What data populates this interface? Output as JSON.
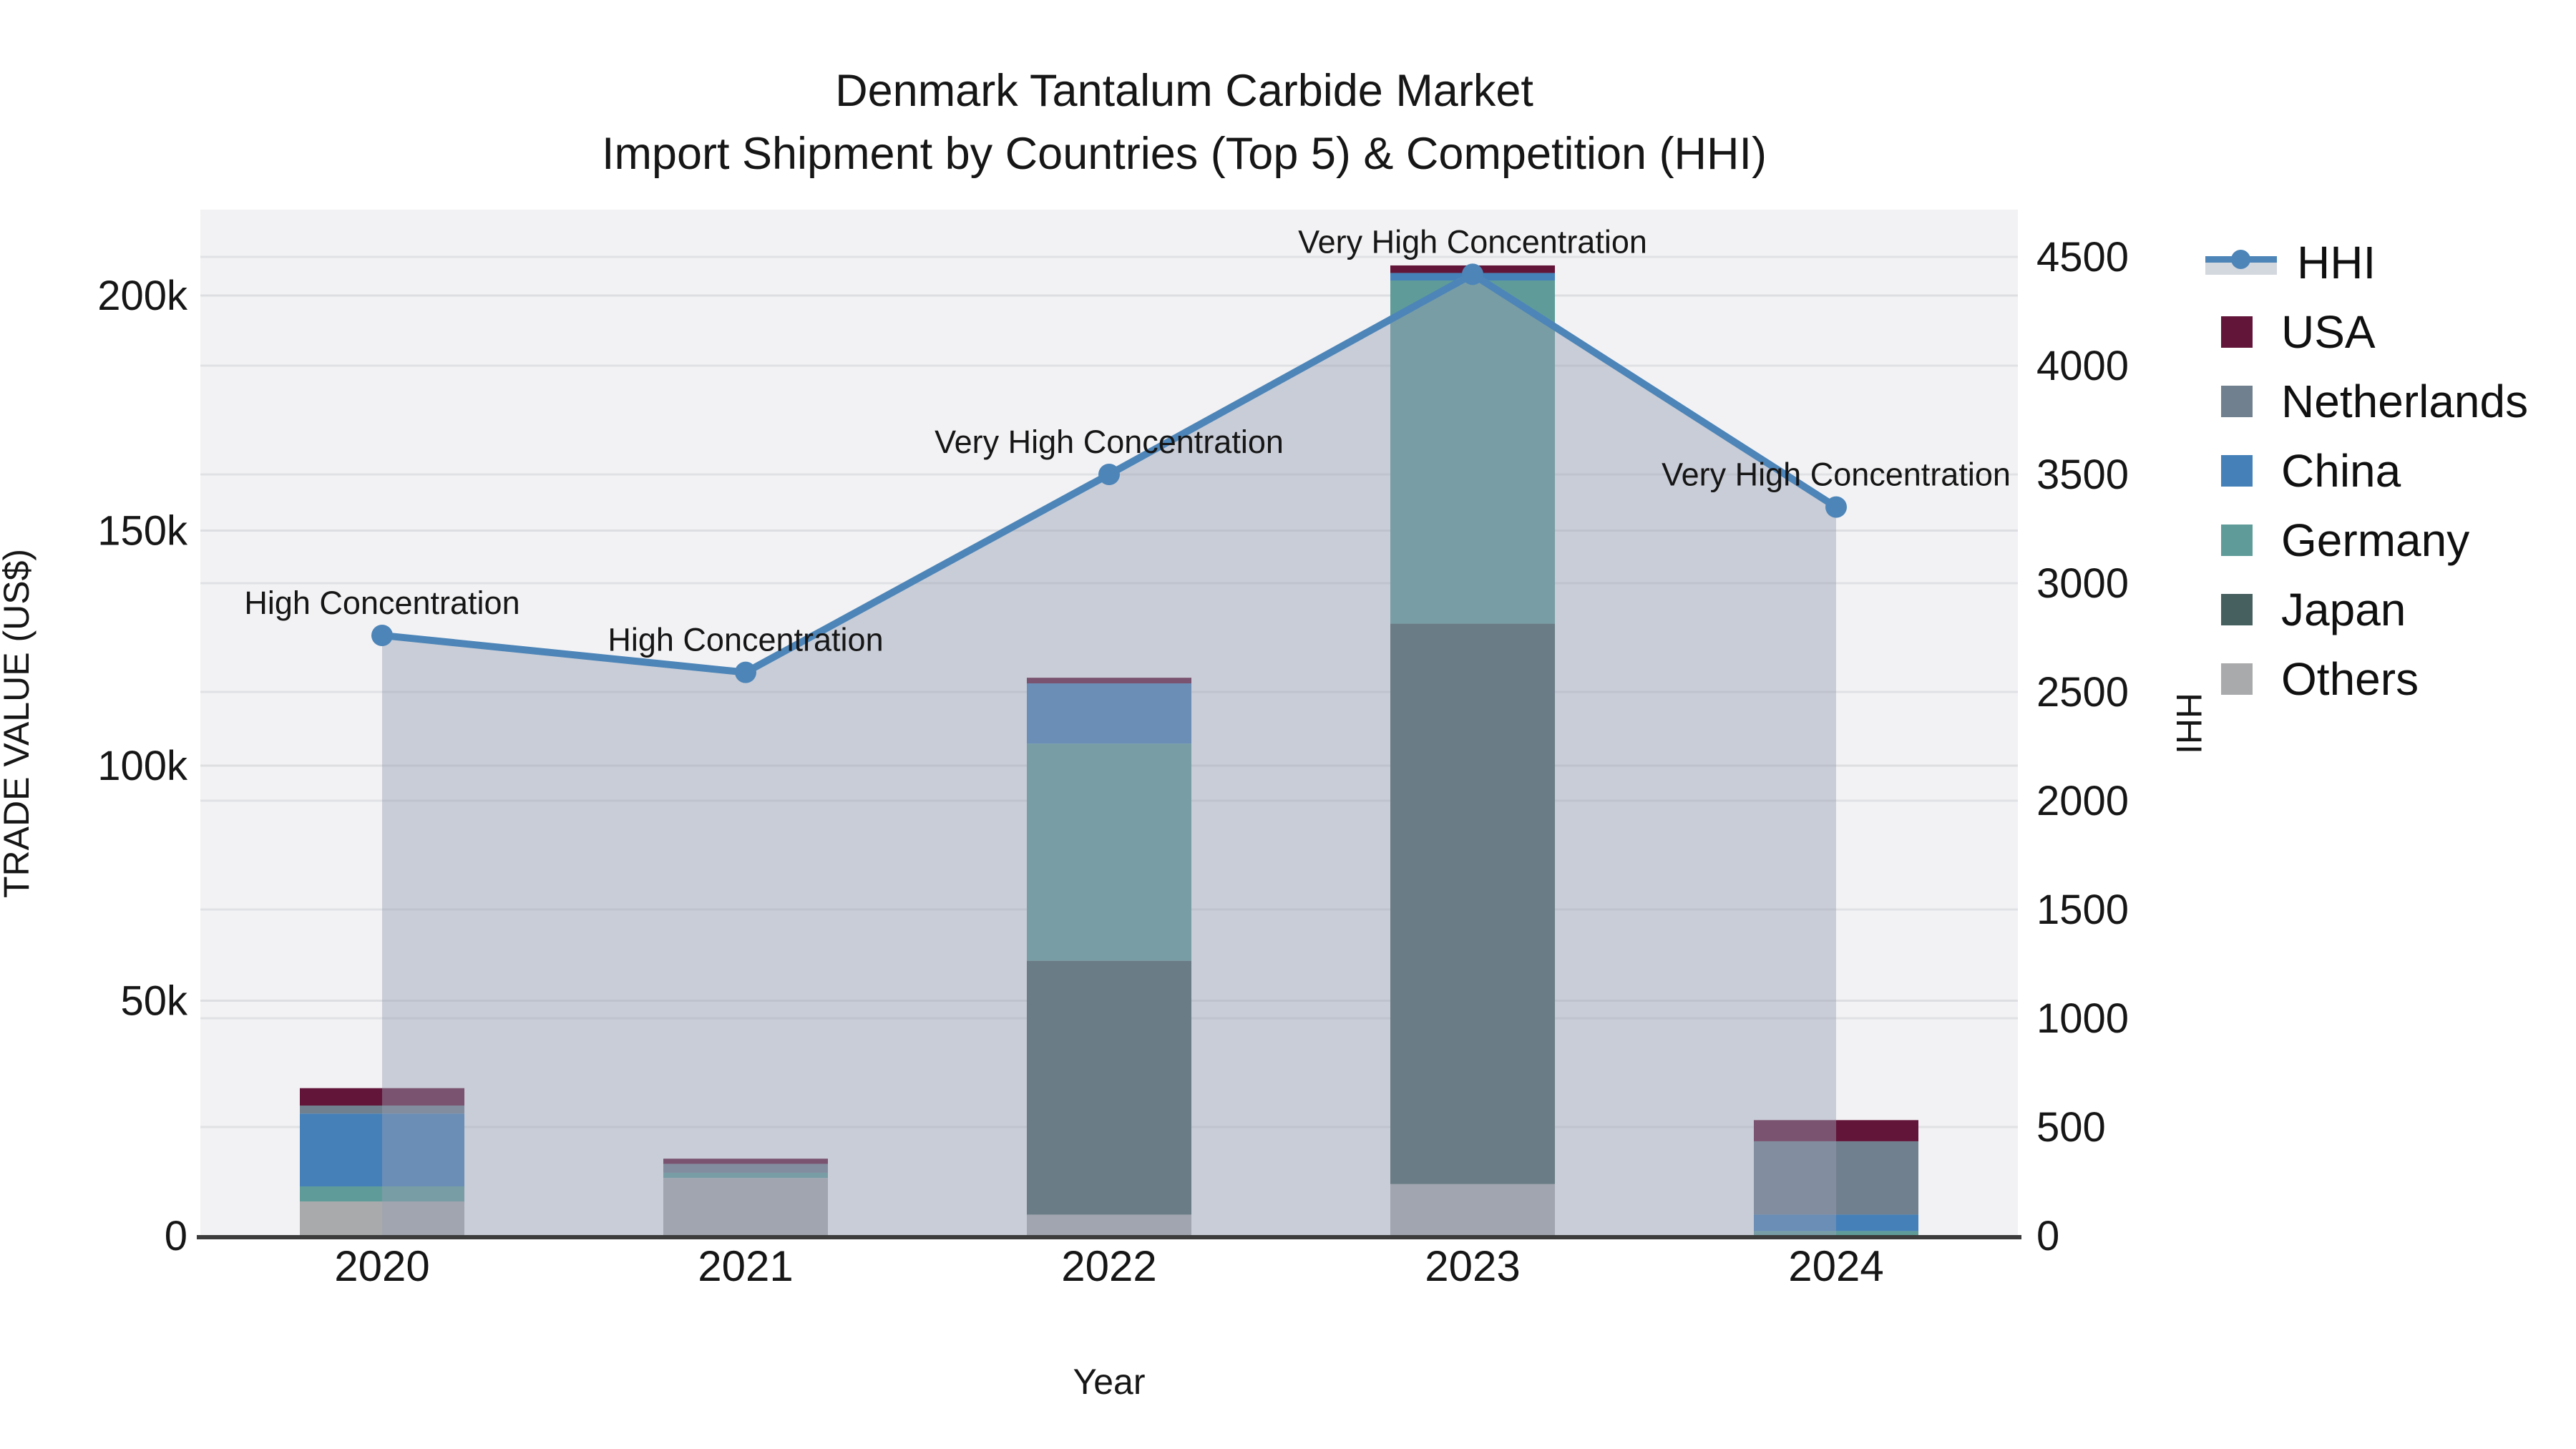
{
  "title": {
    "line1": "Denmark Tantalum Carbide Market",
    "line2": "Import Shipment by Countries (Top 5) & Competition (HHI)"
  },
  "axes": {
    "x": {
      "title": "Year",
      "categories": [
        "2020",
        "2021",
        "2022",
        "2023",
        "2024"
      ]
    },
    "y_left": {
      "title": "TRADE VALUE (US$)",
      "tick_labels": [
        "0",
        "50k",
        "100k",
        "150k",
        "200k"
      ],
      "tick_values_kusd": [
        0,
        50,
        100,
        150,
        200
      ],
      "range_kusd": [
        0,
        218
      ]
    },
    "y_right": {
      "title": "HHI",
      "tick_labels": [
        "0",
        "500",
        "1000",
        "1500",
        "2000",
        "2500",
        "3000",
        "3500",
        "4000",
        "4500"
      ],
      "tick_values": [
        0,
        500,
        1000,
        1500,
        2000,
        2500,
        3000,
        3500,
        4000,
        4500
      ],
      "range": [
        0,
        4710
      ]
    }
  },
  "legend": {
    "items": [
      {
        "label": "HHI",
        "type": "line",
        "color": "#4d85b8",
        "band_color": "#d3d7de"
      },
      {
        "label": "USA",
        "type": "square",
        "color": "#631539"
      },
      {
        "label": "Netherlands",
        "type": "square",
        "color": "#71808f"
      },
      {
        "label": "China",
        "type": "square",
        "color": "#4580b8"
      },
      {
        "label": "Germany",
        "type": "square",
        "color": "#5f9c99"
      },
      {
        "label": "Japan",
        "type": "square",
        "color": "#46605f"
      },
      {
        "label": "Others",
        "type": "square",
        "color": "#a9aaab"
      }
    ]
  },
  "annotations": [
    {
      "category": "2020",
      "text": "High Concentration"
    },
    {
      "category": "2021",
      "text": "High Concentration"
    },
    {
      "category": "2022",
      "text": "Very High Concentration"
    },
    {
      "category": "2023",
      "text": "Very High Concentration"
    },
    {
      "category": "2024",
      "text": "Very High Concentration"
    }
  ],
  "chart_data": {
    "type": "bar",
    "subtype": "stacked-bars-with-line-overlay",
    "title": "Denmark Tantalum Carbide Market — Import Shipment by Countries (Top 5) & Competition (HHI)",
    "categories": [
      "2020",
      "2021",
      "2022",
      "2023",
      "2024"
    ],
    "xlabel": "Year",
    "ylabel_left": "TRADE VALUE (US$)",
    "ylabel_right": "HHI",
    "ylim_left_kusd": [
      0,
      218
    ],
    "ylim_right": [
      0,
      4710
    ],
    "grid": "on",
    "legend_position": "right",
    "bar_unit": "thousand US$ (k)",
    "series": [
      {
        "name": "USA",
        "color": "#631539",
        "values_kusd": [
          3.7,
          1.1,
          1.2,
          1.6,
          4.5
        ]
      },
      {
        "name": "Netherlands",
        "color": "#71808f",
        "values_kusd": [
          1.7,
          1.9,
          0,
          0,
          15.6
        ]
      },
      {
        "name": "China",
        "color": "#4580b8",
        "values_kusd": [
          15.5,
          0,
          12.8,
          1.6,
          3.5
        ]
      },
      {
        "name": "Germany",
        "color": "#5f9c99",
        "values_kusd": [
          3.2,
          1.1,
          46.2,
          73,
          1.0
        ]
      },
      {
        "name": "Japan",
        "color": "#46605f",
        "values_kusd": [
          0,
          0,
          54,
          119.2,
          0
        ]
      },
      {
        "name": "Others",
        "color": "#a9aaab",
        "values_kusd": [
          7.3,
          12.3,
          4.5,
          11,
          0
        ]
      }
    ],
    "stack_order_bottom_to_top": [
      "Others",
      "Japan",
      "Germany",
      "China",
      "Netherlands",
      "USA"
    ],
    "stack_totals_kusd": [
      31.4,
      16.4,
      118.7,
      206.4,
      24.6
    ],
    "line_series": {
      "name": "HHI",
      "axis": "right",
      "color": "#4d85b8",
      "fill_color": "rgba(151,159,179,0.45)",
      "values": [
        2760,
        2590,
        3500,
        4420,
        3350
      ]
    }
  }
}
